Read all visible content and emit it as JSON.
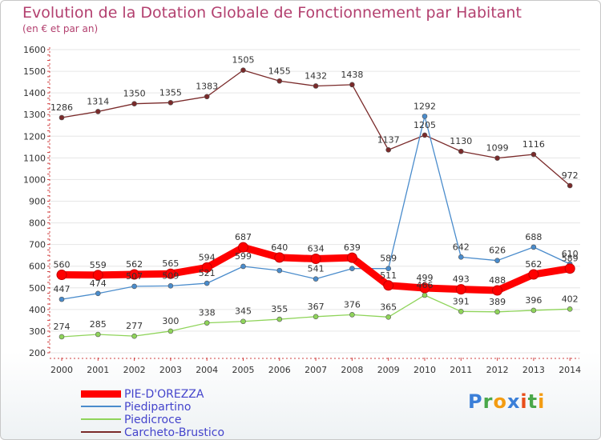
{
  "header": {
    "title": "Evolution de la Dotation Globale de Fonctionnement par Habitant",
    "subtitle": "(en € et par an)"
  },
  "brand": {
    "logo_text": "Proxiti",
    "colors": [
      "#3b7fd8",
      "#4aa84a",
      "#f39c12",
      "#3b7fd8",
      "#e94e1b",
      "#4aa84a",
      "#f39c12"
    ]
  },
  "chart_data": {
    "type": "line",
    "title": "Evolution de la Dotation Globale de Fonctionnement par Habitant",
    "subtitle": "(en € et par an)",
    "x": [
      "2000",
      "2001",
      "2002",
      "2003",
      "2004",
      "2005",
      "2006",
      "2007",
      "2008",
      "2009",
      "2010",
      "2011",
      "2012",
      "2013",
      "2014"
    ],
    "ylim": [
      200,
      1600
    ],
    "yticks": [
      200,
      300,
      400,
      500,
      600,
      700,
      800,
      900,
      1000,
      1100,
      1200,
      1300,
      1400,
      1500,
      1600
    ],
    "grid": true,
    "legend_position": "bottom-left",
    "series": [
      {
        "name": "Carcheto-Brustico",
        "color": "#7a2a2a",
        "values": [
          1286,
          1314,
          1350,
          1355,
          1383,
          1505,
          1455,
          1432,
          1438,
          1137,
          1205,
          1130,
          1099,
          1116,
          972
        ],
        "labels": [
          "1286",
          "1314",
          "1350",
          "1355",
          "1383",
          "1505",
          "1455",
          "1432",
          "1438",
          "1137",
          "1205",
          "1130",
          "1099",
          "1116",
          "972"
        ]
      },
      {
        "name": "Piedipartino",
        "color": "#4a8ccc",
        "values": [
          447,
          474,
          507,
          509,
          521,
          599,
          580,
          541,
          589,
          589,
          1292,
          642,
          626,
          688,
          610
        ],
        "labels": [
          "447",
          "474",
          "507",
          "509",
          "521",
          "599",
          "",
          "541",
          "",
          "589",
          "1292",
          "642",
          "626",
          "688",
          "610"
        ]
      },
      {
        "name": "Piedicroce",
        "color": "#8fd45a",
        "values": [
          274,
          285,
          277,
          300,
          338,
          345,
          355,
          367,
          376,
          365,
          466,
          391,
          389,
          396,
          402
        ],
        "labels": [
          "274",
          "285",
          "277",
          "300",
          "338",
          "345",
          "355",
          "367",
          "376",
          "365",
          "466",
          "391",
          "389",
          "396",
          "402"
        ]
      },
      {
        "name": "PIE-D'OREZZA",
        "color": "#ff0000",
        "values": [
          560,
          559,
          562,
          565,
          594,
          687,
          640,
          634,
          639,
          511,
          499,
          493,
          488,
          562,
          589
        ],
        "labels": [
          "560",
          "559",
          "562",
          "565",
          "594",
          "687",
          "640",
          "634",
          "639",
          "511",
          "499",
          "493",
          "488",
          "562",
          "589"
        ]
      }
    ]
  }
}
